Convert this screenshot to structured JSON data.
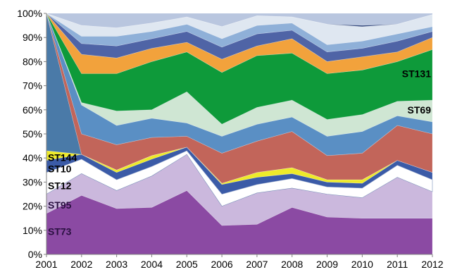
{
  "chart_data": {
    "type": "area",
    "stacked": "percent",
    "title": "",
    "xlabel": "",
    "ylabel": "",
    "x": [
      "2001",
      "2002",
      "2003",
      "2004",
      "2005",
      "2006",
      "2007",
      "2008",
      "2009",
      "2010",
      "2011",
      "2012"
    ],
    "ylim": [
      0,
      100
    ],
    "yticks": [
      "0%",
      "10%",
      "20%",
      "30%",
      "40%",
      "50%",
      "60%",
      "70%",
      "80%",
      "90%",
      "100%"
    ],
    "grid": false,
    "legend": "none",
    "series": [
      {
        "name": "ST73",
        "color": "#8b4aa3",
        "values": [
          17,
          24.5,
          19,
          19.5,
          26.5,
          12,
          12.5,
          19.5,
          15.5,
          15,
          15,
          15
        ]
      },
      {
        "name": "ST95",
        "color": "#cbb8dd",
        "values": [
          8,
          9,
          7.5,
          13,
          15,
          8,
          13,
          8,
          9.5,
          8.5,
          17,
          11
        ]
      },
      {
        "name": "ST12",
        "color": "#ffffff",
        "values": [
          9,
          6,
          4.5,
          4,
          1.5,
          5,
          3.5,
          4,
          3,
          4,
          5,
          5
        ]
      },
      {
        "name": "ST10",
        "color": "#3b5ba7",
        "values": [
          5,
          2,
          3,
          3,
          1.5,
          4,
          3,
          2,
          2,
          2,
          2,
          3
        ]
      },
      {
        "name": "ST144",
        "color": "#eeea2a",
        "values": [
          4,
          0,
          1,
          1.5,
          0,
          0.5,
          2,
          2.5,
          1,
          1.5,
          0,
          0
        ]
      },
      {
        "name": "",
        "color": "#4a7aa8",
        "values": [
          57,
          0,
          0,
          0,
          0,
          0,
          0,
          0,
          0,
          0,
          0,
          0
        ]
      },
      {
        "name": "",
        "color": "#c2655a",
        "values": [
          0,
          8.5,
          10.5,
          7.5,
          4.5,
          12.5,
          13,
          15,
          10,
          11,
          14.5,
          16
        ]
      },
      {
        "name": "",
        "color": "#5a8fc4",
        "values": [
          0,
          12,
          8,
          8,
          5.5,
          7,
          7,
          6,
          8,
          9,
          4,
          5
        ]
      },
      {
        "name": "ST69",
        "color": "#cfe6d3",
        "values": [
          0,
          1,
          6,
          3.5,
          13,
          5,
          7,
          7,
          7,
          7,
          6,
          9
        ]
      },
      {
        "name": "ST131",
        "color": "#0e9a3a",
        "values": [
          0,
          12,
          15.5,
          20,
          16.5,
          21.5,
          21.5,
          19.5,
          19,
          18.5,
          16.5,
          21
        ]
      },
      {
        "name": "",
        "color": "#f2a23c",
        "values": [
          0,
          8,
          6.5,
          5.5,
          4,
          5.5,
          4,
          6,
          5,
          5.5,
          4,
          5
        ]
      },
      {
        "name": "",
        "color": "#4f64a6",
        "values": [
          0,
          4.5,
          5,
          4,
          4.5,
          5,
          5,
          3.5,
          4,
          3.5,
          4.5,
          2.5
        ]
      },
      {
        "name": "",
        "color": "#8fb0d8",
        "values": [
          0,
          3,
          4,
          3,
          3,
          3.5,
          3.5,
          3,
          3,
          3,
          3,
          2
        ]
      },
      {
        "name": "",
        "color": "#dfe7f1",
        "values": [
          0,
          4.5,
          3.5,
          3.5,
          3,
          5,
          4,
          2.5,
          8.5,
          6,
          4,
          5
        ]
      },
      {
        "name": "",
        "color": "#243a72",
        "values": [
          0,
          0,
          0,
          0,
          0,
          0,
          0,
          0,
          0,
          0.5,
          0,
          0
        ]
      }
    ]
  }
}
